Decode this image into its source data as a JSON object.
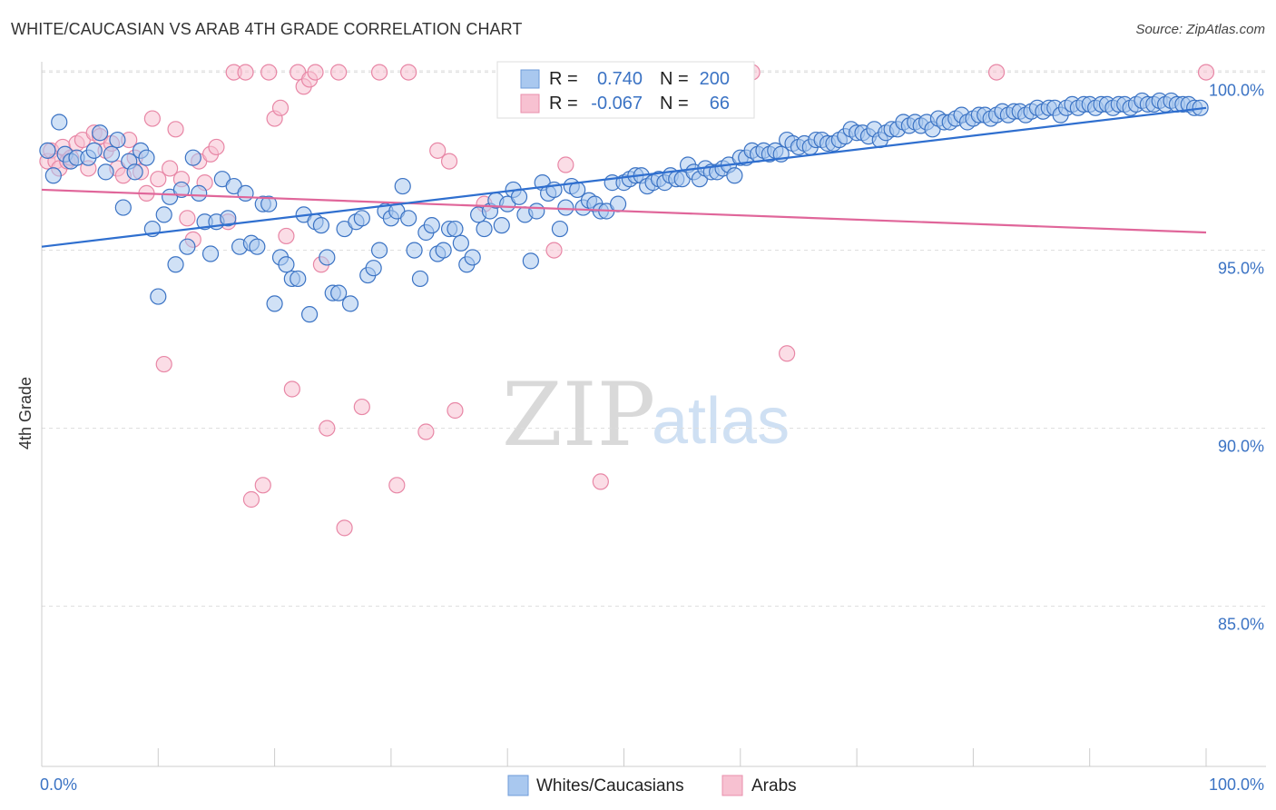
{
  "title": "WHITE/CAUCASIAN VS ARAB 4TH GRADE CORRELATION CHART",
  "source": "Source: ZipAtlas.com",
  "watermark": {
    "zip": "ZIP",
    "atlas": "atlas"
  },
  "colors": {
    "blue": "#3b73c4",
    "blue_fill": "#a9c8ef",
    "blue_line": "#2f6fcf",
    "pink": "#e887a6",
    "pink_fill": "#f7c1d1",
    "pink_line": "#e0669a",
    "grid": "#dddddd"
  },
  "legend": {
    "rows": [
      {
        "r_label": "R =",
        "r_value": "0.740",
        "n_label": "N =",
        "n_value": "200"
      },
      {
        "r_label": "R =",
        "r_value": "-0.067",
        "n_label": "N =",
        "n_value": "66"
      }
    ]
  },
  "bottom_legend": [
    "Whites/Caucasians",
    "Arabs"
  ],
  "chart_data": {
    "type": "scatter",
    "title": "WHITE/CAUCASIAN VS ARAB 4TH GRADE CORRELATION CHART",
    "xlabel": "",
    "ylabel": "4th Grade",
    "xlim": [
      0,
      100
    ],
    "ylim": [
      80.5,
      100.5
    ],
    "x_tick_labels": [
      "0.0%",
      "100.0%"
    ],
    "y_ticks": [
      85,
      90,
      95,
      100
    ],
    "y_tick_labels": [
      "85.0%",
      "90.0%",
      "95.0%",
      "100.0%"
    ],
    "grid": true,
    "series": [
      {
        "name": "Whites/Caucasians",
        "R": 0.74,
        "N": 200,
        "trend": {
          "x": [
            0,
            100
          ],
          "y": [
            95.1,
            99.0
          ]
        },
        "points": [
          [
            0.5,
            97.8
          ],
          [
            1,
            97.1
          ],
          [
            1.5,
            98.6
          ],
          [
            2,
            97.7
          ],
          [
            2.5,
            97.5
          ],
          [
            3,
            97.6
          ],
          [
            4,
            97.6
          ],
          [
            4.5,
            97.8
          ],
          [
            5,
            98.3
          ],
          [
            5.5,
            97.2
          ],
          [
            6,
            97.7
          ],
          [
            6.5,
            98.1
          ],
          [
            7,
            96.2
          ],
          [
            7.5,
            97.5
          ],
          [
            8,
            97.2
          ],
          [
            8.5,
            97.8
          ],
          [
            9,
            97.6
          ],
          [
            9.5,
            95.6
          ],
          [
            10,
            93.7
          ],
          [
            10.5,
            96.0
          ],
          [
            11,
            96.5
          ],
          [
            11.5,
            94.6
          ],
          [
            12,
            96.7
          ],
          [
            12.5,
            95.1
          ],
          [
            13,
            97.6
          ],
          [
            13.5,
            96.6
          ],
          [
            14,
            95.8
          ],
          [
            14.5,
            94.9
          ],
          [
            15,
            95.8
          ],
          [
            15.5,
            97.0
          ],
          [
            16,
            95.9
          ],
          [
            16.5,
            96.8
          ],
          [
            17,
            95.1
          ],
          [
            17.5,
            96.6
          ],
          [
            18,
            95.2
          ],
          [
            18.5,
            95.1
          ],
          [
            19,
            96.3
          ],
          [
            19.5,
            96.3
          ],
          [
            20,
            93.5
          ],
          [
            20.5,
            94.8
          ],
          [
            21,
            94.6
          ],
          [
            21.5,
            94.2
          ],
          [
            22,
            94.2
          ],
          [
            22.5,
            96.0
          ],
          [
            23,
            93.2
          ],
          [
            23.5,
            95.8
          ],
          [
            24,
            95.7
          ],
          [
            24.5,
            94.8
          ],
          [
            25,
            93.8
          ],
          [
            25.5,
            93.8
          ],
          [
            26,
            95.6
          ],
          [
            26.5,
            93.5
          ],
          [
            27,
            95.8
          ],
          [
            27.5,
            95.9
          ],
          [
            28,
            94.3
          ],
          [
            28.5,
            94.5
          ],
          [
            29,
            95.0
          ],
          [
            29.5,
            96.1
          ],
          [
            30,
            95.9
          ],
          [
            30.5,
            96.1
          ],
          [
            31,
            96.8
          ],
          [
            31.5,
            95.9
          ],
          [
            32,
            95.0
          ],
          [
            32.5,
            94.2
          ],
          [
            33,
            95.5
          ],
          [
            33.5,
            95.7
          ],
          [
            34,
            94.9
          ],
          [
            34.5,
            95.0
          ],
          [
            35,
            95.6
          ],
          [
            35.5,
            95.6
          ],
          [
            36,
            95.2
          ],
          [
            36.5,
            94.6
          ],
          [
            37,
            94.8
          ],
          [
            37.5,
            96.0
          ],
          [
            38,
            95.6
          ],
          [
            38.5,
            96.1
          ],
          [
            39,
            96.4
          ],
          [
            39.5,
            95.7
          ],
          [
            40,
            96.3
          ],
          [
            40.5,
            96.7
          ],
          [
            41,
            96.5
          ],
          [
            41.5,
            96.0
          ],
          [
            42,
            94.7
          ],
          [
            42.5,
            96.1
          ],
          [
            43,
            96.9
          ],
          [
            43.5,
            96.6
          ],
          [
            44,
            96.7
          ],
          [
            44.5,
            95.6
          ],
          [
            45,
            96.2
          ],
          [
            45.5,
            96.8
          ],
          [
            46,
            96.7
          ],
          [
            46.5,
            96.2
          ],
          [
            47,
            96.4
          ],
          [
            47.5,
            96.3
          ],
          [
            48,
            96.1
          ],
          [
            48.5,
            96.1
          ],
          [
            49,
            96.9
          ],
          [
            49.5,
            96.3
          ],
          [
            50,
            96.9
          ],
          [
            50.5,
            97.0
          ],
          [
            51,
            97.1
          ],
          [
            51.5,
            97.1
          ],
          [
            52,
            96.8
          ],
          [
            52.5,
            96.9
          ],
          [
            53,
            97.0
          ],
          [
            53.5,
            96.9
          ],
          [
            54,
            97.1
          ],
          [
            54.5,
            97.0
          ],
          [
            55,
            97.0
          ],
          [
            55.5,
            97.4
          ],
          [
            56,
            97.2
          ],
          [
            56.5,
            97.0
          ],
          [
            57,
            97.3
          ],
          [
            57.5,
            97.2
          ],
          [
            58,
            97.2
          ],
          [
            58.5,
            97.3
          ],
          [
            59,
            97.4
          ],
          [
            59.5,
            97.1
          ],
          [
            60,
            97.6
          ],
          [
            60.5,
            97.6
          ],
          [
            61,
            97.8
          ],
          [
            61.5,
            97.7
          ],
          [
            62,
            97.8
          ],
          [
            62.5,
            97.7
          ],
          [
            63,
            97.8
          ],
          [
            63.5,
            97.7
          ],
          [
            64,
            98.1
          ],
          [
            64.5,
            98.0
          ],
          [
            65,
            97.9
          ],
          [
            65.5,
            98.0
          ],
          [
            66,
            97.9
          ],
          [
            66.5,
            98.1
          ],
          [
            67,
            98.1
          ],
          [
            67.5,
            98.0
          ],
          [
            68,
            98.0
          ],
          [
            68.5,
            98.1
          ],
          [
            69,
            98.2
          ],
          [
            69.5,
            98.4
          ],
          [
            70,
            98.3
          ],
          [
            70.5,
            98.3
          ],
          [
            71,
            98.2
          ],
          [
            71.5,
            98.4
          ],
          [
            72,
            98.1
          ],
          [
            72.5,
            98.3
          ],
          [
            73,
            98.4
          ],
          [
            73.5,
            98.4
          ],
          [
            74,
            98.6
          ],
          [
            74.5,
            98.5
          ],
          [
            75,
            98.6
          ],
          [
            75.5,
            98.5
          ],
          [
            76,
            98.6
          ],
          [
            76.5,
            98.4
          ],
          [
            77,
            98.7
          ],
          [
            77.5,
            98.6
          ],
          [
            78,
            98.6
          ],
          [
            78.5,
            98.7
          ],
          [
            79,
            98.8
          ],
          [
            79.5,
            98.6
          ],
          [
            80,
            98.7
          ],
          [
            80.5,
            98.8
          ],
          [
            81,
            98.8
          ],
          [
            81.5,
            98.7
          ],
          [
            82,
            98.8
          ],
          [
            82.5,
            98.9
          ],
          [
            83,
            98.8
          ],
          [
            83.5,
            98.9
          ],
          [
            84,
            98.9
          ],
          [
            84.5,
            98.8
          ],
          [
            85,
            98.9
          ],
          [
            85.5,
            99.0
          ],
          [
            86,
            98.9
          ],
          [
            86.5,
            99.0
          ],
          [
            87,
            99.0
          ],
          [
            87.5,
            98.8
          ],
          [
            88,
            99.0
          ],
          [
            88.5,
            99.1
          ],
          [
            89,
            99.0
          ],
          [
            89.5,
            99.1
          ],
          [
            90,
            99.1
          ],
          [
            90.5,
            99.0
          ],
          [
            91,
            99.1
          ],
          [
            91.5,
            99.1
          ],
          [
            92,
            99.0
          ],
          [
            92.5,
            99.1
          ],
          [
            93,
            99.1
          ],
          [
            93.5,
            99.0
          ],
          [
            94,
            99.1
          ],
          [
            94.5,
            99.2
          ],
          [
            95,
            99.1
          ],
          [
            95.5,
            99.1
          ],
          [
            96,
            99.2
          ],
          [
            96.5,
            99.1
          ],
          [
            97,
            99.2
          ],
          [
            97.5,
            99.1
          ],
          [
            98,
            99.1
          ],
          [
            98.5,
            99.1
          ],
          [
            99,
            99.0
          ],
          [
            99.5,
            99.0
          ]
        ]
      },
      {
        "name": "Arabs",
        "R": -0.067,
        "N": 66,
        "trend": {
          "x": [
            0,
            100
          ],
          "y": [
            96.7,
            95.5
          ]
        },
        "points": [
          [
            0.5,
            97.5
          ],
          [
            0.8,
            97.8
          ],
          [
            1.2,
            97.5
          ],
          [
            1.5,
            97.3
          ],
          [
            1.8,
            97.9
          ],
          [
            2.2,
            97.5
          ],
          [
            2.5,
            97.6
          ],
          [
            3,
            98.0
          ],
          [
            3.5,
            98.1
          ],
          [
            4,
            97.3
          ],
          [
            4.5,
            98.3
          ],
          [
            5,
            98.2
          ],
          [
            5.5,
            97.8
          ],
          [
            6,
            98.0
          ],
          [
            6.5,
            97.3
          ],
          [
            7,
            97.1
          ],
          [
            7.5,
            98.1
          ],
          [
            8,
            97.6
          ],
          [
            8.5,
            97.2
          ],
          [
            9,
            96.6
          ],
          [
            9.5,
            98.7
          ],
          [
            10,
            97.0
          ],
          [
            10.5,
            91.8
          ],
          [
            11,
            97.3
          ],
          [
            11.5,
            98.4
          ],
          [
            12,
            97.0
          ],
          [
            12.5,
            95.9
          ],
          [
            13,
            95.3
          ],
          [
            13.5,
            97.5
          ],
          [
            14,
            96.9
          ],
          [
            14.5,
            97.7
          ],
          [
            15,
            97.9
          ],
          [
            16,
            95.8
          ],
          [
            16.5,
            100.0
          ],
          [
            17.5,
            100.0
          ],
          [
            18,
            88.0
          ],
          [
            19,
            88.4
          ],
          [
            19.5,
            100.0
          ],
          [
            20,
            98.7
          ],
          [
            20.5,
            99.0
          ],
          [
            21,
            95.4
          ],
          [
            21.5,
            91.1
          ],
          [
            22,
            100.0
          ],
          [
            22.5,
            99.6
          ],
          [
            23,
            99.8
          ],
          [
            23.5,
            100.0
          ],
          [
            24,
            94.6
          ],
          [
            24.5,
            90.0
          ],
          [
            25.5,
            100.0
          ],
          [
            26,
            87.2
          ],
          [
            27.5,
            90.6
          ],
          [
            29,
            100.0
          ],
          [
            30.5,
            88.4
          ],
          [
            31.5,
            100.0
          ],
          [
            33,
            89.9
          ],
          [
            34,
            97.8
          ],
          [
            35,
            97.5
          ],
          [
            35.5,
            90.5
          ],
          [
            38,
            96.3
          ],
          [
            44,
            95.0
          ],
          [
            45,
            97.4
          ],
          [
            47.5,
            100.0
          ],
          [
            48,
            88.5
          ],
          [
            61,
            100.0
          ],
          [
            64,
            92.1
          ],
          [
            82,
            100.0
          ],
          [
            100,
            100.0
          ]
        ]
      }
    ]
  }
}
